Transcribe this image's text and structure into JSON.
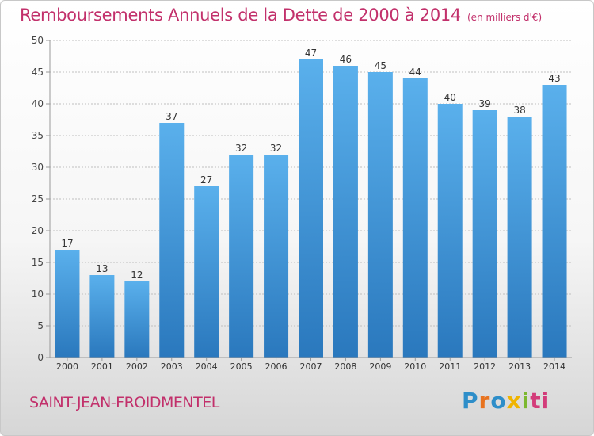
{
  "chart_data": {
    "type": "bar",
    "title": "Remboursements Annuels de la Dette de 2000 à 2014",
    "subtitle": "(en milliers d'€)",
    "categories": [
      "2000",
      "2001",
      "2002",
      "2003",
      "2004",
      "2005",
      "2006",
      "2007",
      "2008",
      "2009",
      "2010",
      "2011",
      "2012",
      "2013",
      "2014"
    ],
    "values": [
      17,
      13,
      12,
      37,
      27,
      32,
      32,
      47,
      46,
      45,
      44,
      40,
      39,
      38,
      43
    ],
    "xlabel": "",
    "ylabel": "",
    "ylim": [
      0,
      50
    ],
    "yticks": [
      0,
      5,
      10,
      15,
      20,
      25,
      30,
      35,
      40,
      45,
      50
    ],
    "grid": true,
    "bar_color": "#3a8fd2"
  },
  "footer": {
    "commune": "SAINT-JEAN-FROIDMENTEL",
    "logo_letters": [
      "P",
      "r",
      "o",
      "x",
      "i",
      "ti"
    ]
  }
}
